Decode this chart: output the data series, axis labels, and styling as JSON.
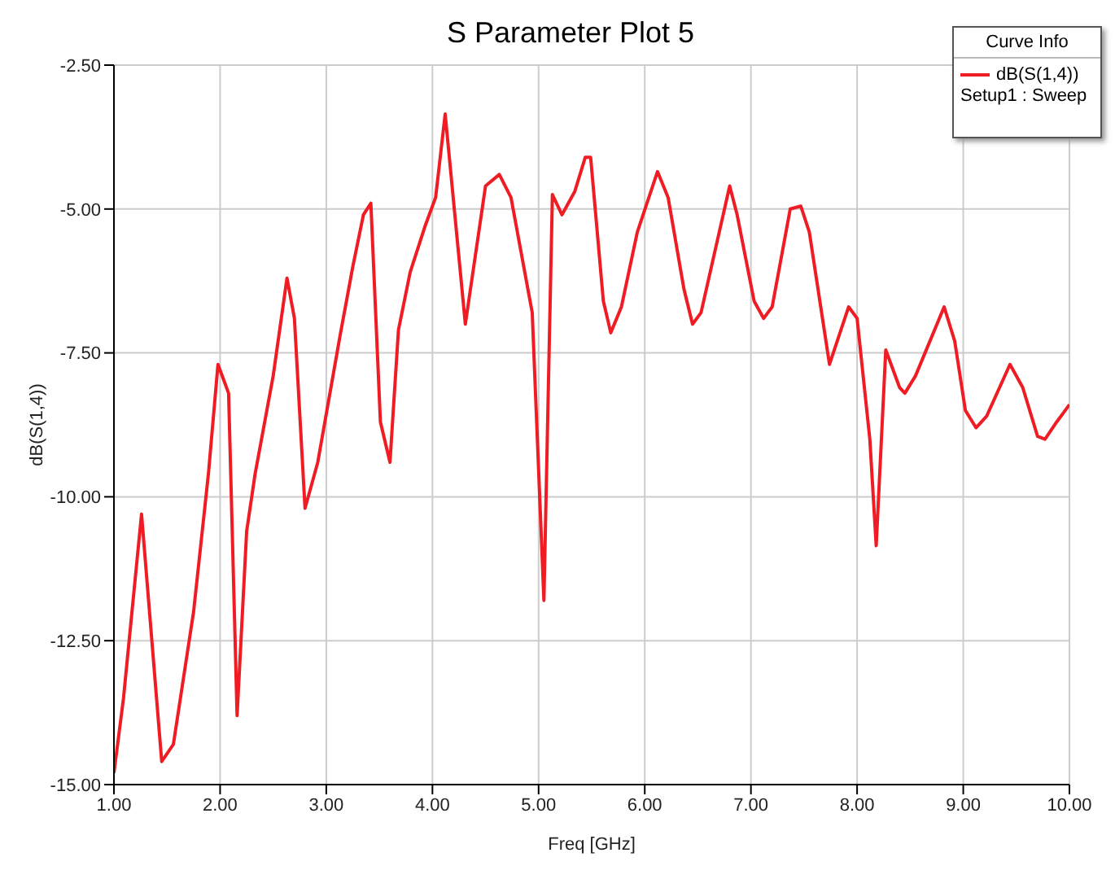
{
  "chart_data": {
    "type": "line",
    "title": "S Parameter Plot 5",
    "xlabel": "Freq [GHz]",
    "ylabel": "dB(S(1,4))",
    "legend_title": "Curve Info",
    "annotations": [
      "Setup1 : Sweep"
    ],
    "x": [
      1.0,
      1.09,
      1.26,
      1.45,
      1.56,
      1.75,
      1.89,
      1.98,
      2.08,
      2.16,
      2.25,
      2.33,
      2.5,
      2.63,
      2.7,
      2.8,
      2.92,
      3.13,
      3.25,
      3.35,
      3.42,
      3.51,
      3.6,
      3.68,
      3.79,
      3.93,
      4.03,
      4.12,
      4.31,
      4.5,
      4.63,
      4.74,
      4.94,
      5.05,
      5.13,
      5.22,
      5.34,
      5.44,
      5.49,
      5.61,
      5.68,
      5.78,
      5.93,
      6.12,
      6.22,
      6.37,
      6.45,
      6.53,
      6.8,
      6.87,
      7.03,
      7.12,
      7.2,
      7.37,
      7.47,
      7.55,
      7.74,
      7.92,
      8.0,
      8.12,
      8.18,
      8.27,
      8.4,
      8.45,
      8.55,
      8.82,
      8.92,
      9.02,
      9.12,
      9.22,
      9.44,
      9.56,
      9.7,
      9.77,
      9.88,
      10.0
    ],
    "series": [
      {
        "name": "dB(S(1,4))",
        "color": "#f01c24",
        "values": [
          -14.8,
          -13.5,
          -10.3,
          -14.6,
          -14.3,
          -12.0,
          -9.6,
          -7.7,
          -8.2,
          -13.8,
          -10.6,
          -9.6,
          -7.9,
          -6.2,
          -6.9,
          -10.2,
          -9.4,
          -7.2,
          -6.0,
          -5.1,
          -4.9,
          -8.7,
          -9.4,
          -7.1,
          -6.1,
          -5.3,
          -4.8,
          -3.35,
          -7.0,
          -4.6,
          -4.4,
          -4.8,
          -6.8,
          -11.8,
          -4.75,
          -5.1,
          -4.7,
          -4.1,
          -4.1,
          -6.6,
          -7.15,
          -6.7,
          -5.4,
          -4.35,
          -4.8,
          -6.4,
          -7.0,
          -6.8,
          -4.6,
          -5.1,
          -6.6,
          -6.9,
          -6.7,
          -5.0,
          -4.95,
          -5.4,
          -7.7,
          -6.7,
          -6.9,
          -9.0,
          -10.85,
          -7.45,
          -8.1,
          -8.2,
          -7.9,
          -6.7,
          -7.3,
          -8.5,
          -8.8,
          -8.6,
          -7.7,
          -8.1,
          -8.95,
          -9.0,
          -8.7,
          -8.4
        ]
      }
    ],
    "xlim": [
      1,
      10
    ],
    "xticks": [
      {
        "value": 1,
        "label": "1.00"
      },
      {
        "value": 2,
        "label": "2.00"
      },
      {
        "value": 3,
        "label": "3.00"
      },
      {
        "value": 4,
        "label": "4.00"
      },
      {
        "value": 5,
        "label": "5.00"
      },
      {
        "value": 6,
        "label": "6.00"
      },
      {
        "value": 7,
        "label": "7.00"
      },
      {
        "value": 8,
        "label": "8.00"
      },
      {
        "value": 9,
        "label": "9.00"
      },
      {
        "value": 10,
        "label": "10.00"
      }
    ],
    "ylim": [
      -15,
      -2.5
    ],
    "yticks": [
      {
        "value": -15,
        "label": "-15.00"
      },
      {
        "value": -12.5,
        "label": "-12.50"
      },
      {
        "value": -10,
        "label": "-10.00"
      },
      {
        "value": -7.5,
        "label": "-7.50"
      },
      {
        "value": -5,
        "label": "-5.00"
      },
      {
        "value": -2.5,
        "label": "-2.50"
      }
    ],
    "grid": true,
    "legend": "top right",
    "marker": "none",
    "line_style": "solid"
  }
}
